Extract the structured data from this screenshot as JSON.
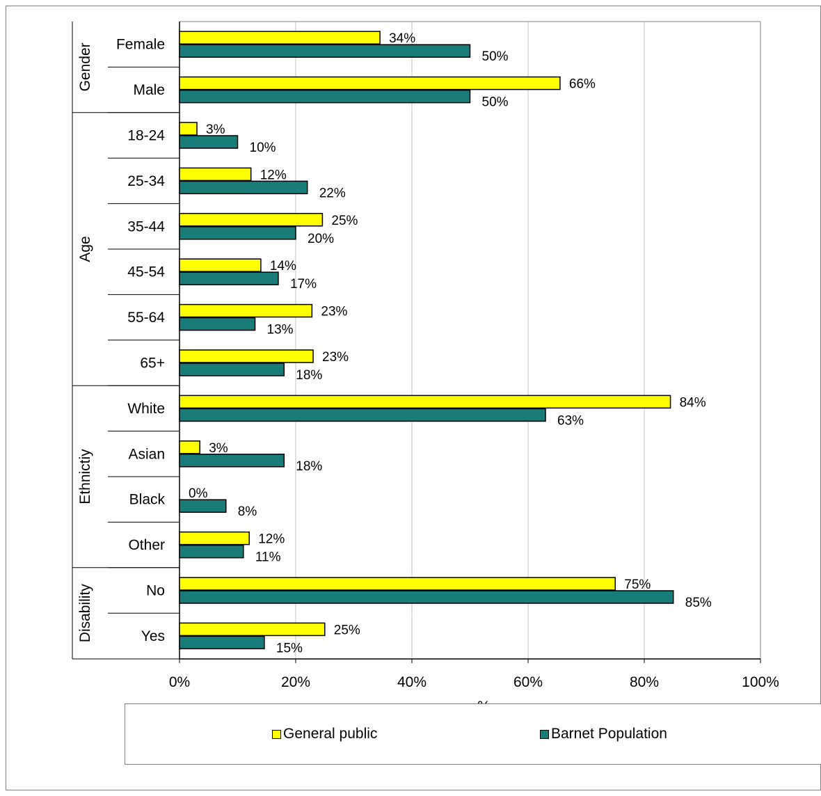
{
  "colors": {
    "general_public": "#ffff00",
    "barnet_population": "#1a7c78",
    "bar_outline": "#000000",
    "grid": "#c0c0c0"
  },
  "chart_data": {
    "type": "bar",
    "orientation": "horizontal",
    "title": "",
    "xlabel": "%",
    "ylabel": "",
    "xlim": [
      0,
      100
    ],
    "x_ticks": [
      "0%",
      "20%",
      "40%",
      "60%",
      "80%",
      "100%"
    ],
    "grid": "vertical",
    "legend_position": "bottom",
    "groups": [
      {
        "label": "Gender",
        "categories": [
          "Female",
          "Male"
        ]
      },
      {
        "label": "Age",
        "categories": [
          "18-24",
          "25-34",
          "35-44",
          "45-54",
          "55-64",
          "65+"
        ]
      },
      {
        "label": "Ethnictiy",
        "categories": [
          "White",
          "Asian",
          "Black",
          "Other"
        ]
      },
      {
        "label": "Disability",
        "categories": [
          "No",
          "Yes"
        ]
      }
    ],
    "categories": [
      "Female",
      "Male",
      "18-24",
      "25-34",
      "35-44",
      "45-54",
      "55-64",
      "65+",
      "White",
      "Asian",
      "Black",
      "Other",
      "No",
      "Yes"
    ],
    "series": [
      {
        "name": "General public",
        "values": [
          34.5,
          65.5,
          3.0,
          12.3,
          24.6,
          14.0,
          22.8,
          23.0,
          84.5,
          3.5,
          0,
          12.0,
          75.0,
          25.0
        ],
        "labels": [
          "34%",
          "66%",
          "3%",
          "12%",
          "25%",
          "14%",
          "23%",
          "23%",
          "84%",
          "3%",
          "0%",
          "12%",
          "75%",
          "25%"
        ]
      },
      {
        "name": "Barnet Population",
        "values": [
          50.0,
          50.0,
          10.0,
          22.0,
          20.0,
          17.0,
          13.0,
          18.0,
          63.0,
          18.0,
          8.0,
          11.0,
          85.0,
          14.6
        ],
        "labels": [
          "50%",
          "50%",
          "10%",
          "22%",
          "20%",
          "17%",
          "13%",
          "18%",
          "63%",
          "18%",
          "8%",
          "11%",
          "85%",
          "15%"
        ]
      }
    ]
  },
  "legend": {
    "general_public_label": "General public",
    "barnet_population_label": "Barnet Population"
  }
}
